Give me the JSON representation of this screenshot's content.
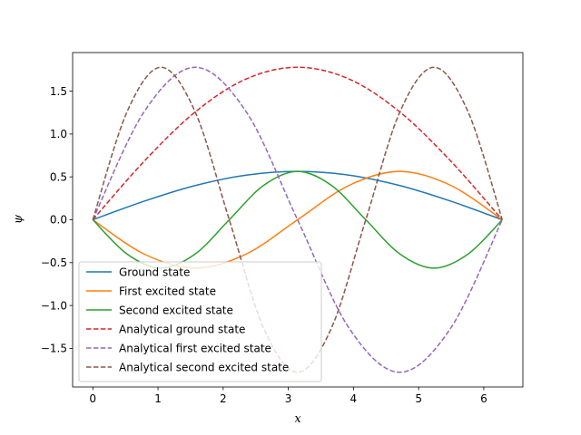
{
  "chart_data": {
    "type": "line",
    "title": "",
    "xlabel": "x",
    "ylabel": "ψ",
    "xlim": [
      -0.31,
      6.6
    ],
    "ylim": [
      -1.95,
      1.95
    ],
    "xticks": [
      0,
      1,
      2,
      3,
      4,
      5,
      6
    ],
    "yticks": [
      -1.5,
      -1.0,
      -0.5,
      0.0,
      0.5,
      1.0,
      1.5
    ],
    "xtick_labels": [
      "0",
      "1",
      "2",
      "3",
      "4",
      "5",
      "6"
    ],
    "ytick_labels": [
      "−1.5",
      "−1.0",
      "−0.5",
      "0.0",
      "0.5",
      "1.0",
      "1.5"
    ],
    "grid": false,
    "legend_position": "lower-left",
    "series": [
      {
        "name": "Ground state",
        "color": "#1f77b4",
        "dash": "solid",
        "x": [
          0,
          0.785,
          1.571,
          2.356,
          3.142,
          3.927,
          4.712,
          5.498,
          6.283
        ],
        "y": [
          0,
          0.216,
          0.399,
          0.521,
          0.564,
          0.521,
          0.399,
          0.216,
          0
        ]
      },
      {
        "name": "First excited state",
        "color": "#ff7f0e",
        "dash": "solid",
        "x": [
          0,
          0.785,
          1.571,
          2.356,
          3.142,
          3.927,
          4.712,
          5.498,
          6.283
        ],
        "y": [
          0,
          -0.399,
          -0.564,
          -0.399,
          0,
          0.399,
          0.564,
          0.399,
          0
        ]
      },
      {
        "name": "Second excited state",
        "color": "#2ca02c",
        "dash": "solid",
        "x": [
          0,
          0.524,
          1.047,
          1.571,
          2.094,
          2.618,
          3.142,
          3.665,
          4.189,
          4.712,
          5.236,
          5.76,
          6.283
        ],
        "y": [
          0,
          -0.399,
          -0.564,
          -0.399,
          0,
          0.399,
          0.564,
          0.399,
          0,
          -0.399,
          -0.564,
          -0.399,
          0
        ]
      },
      {
        "name": "Analytical ground state",
        "color": "#d62728",
        "dash": "dashed",
        "x": [
          0,
          0.785,
          1.571,
          2.356,
          3.142,
          3.927,
          4.712,
          5.498,
          6.283
        ],
        "y": [
          0,
          0.68,
          1.257,
          1.643,
          1.778,
          1.643,
          1.257,
          0.68,
          0
        ]
      },
      {
        "name": "Analytical first excited state",
        "color": "#9467bd",
        "dash": "dashed",
        "x": [
          0,
          0.785,
          1.571,
          2.356,
          3.142,
          3.927,
          4.712,
          5.498,
          6.283
        ],
        "y": [
          0,
          1.257,
          1.778,
          1.257,
          0,
          -1.257,
          -1.778,
          -1.257,
          0
        ]
      },
      {
        "name": "Analytical second excited state",
        "color": "#8c564b",
        "dash": "dashed",
        "x": [
          0,
          0.524,
          1.047,
          1.571,
          2.094,
          2.618,
          3.142,
          3.665,
          4.189,
          4.712,
          5.236,
          5.76,
          6.283
        ],
        "y": [
          0,
          1.257,
          1.778,
          1.257,
          0,
          -1.257,
          -1.778,
          -1.257,
          0,
          1.257,
          1.778,
          1.257,
          0
        ]
      }
    ]
  }
}
